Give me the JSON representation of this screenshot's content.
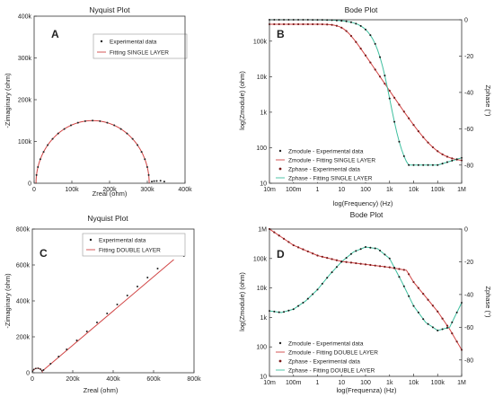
{
  "chart_data": [
    {
      "id": "A",
      "type": "scatter",
      "title": "Nyquist Plot",
      "panel_label": "A",
      "xlabel": "Zreal (ohm)",
      "ylabel": "-Zimaginary (ohm)",
      "xlim": [
        0,
        400000
      ],
      "ylim": [
        0,
        400000
      ],
      "xticks": [
        0,
        100000,
        200000,
        300000,
        400000
      ],
      "xtick_labels": [
        "0",
        "100k",
        "200k",
        "300k",
        "400k"
      ],
      "yticks": [
        0,
        100000,
        200000,
        300000,
        400000
      ],
      "ytick_labels": [
        "0",
        "100k",
        "200k",
        "300k",
        "400k"
      ],
      "legend": [
        "Experimental data",
        "Fitting SINGLE LAYER"
      ],
      "legend_position": "top-right",
      "semicircle": {
        "r_series": 5000,
        "r_total": 300000
      },
      "extra_points": [
        [
          312000,
          4000
        ],
        [
          318000,
          5000
        ],
        [
          325000,
          5500
        ],
        [
          335000,
          6000
        ],
        [
          345000,
          4000
        ]
      ]
    },
    {
      "id": "B",
      "type": "line",
      "title": "Bode Plot",
      "panel_label": "B",
      "xlabel": "log(Frequency) (Hz)",
      "ylabel": "log(Zmodule) (ohm)",
      "y2label": "Zphase (°)",
      "log_x": true,
      "log_y": true,
      "xlim": [
        10,
        1000000
      ],
      "ylim": [
        10,
        400000
      ],
      "y2lim": [
        -90,
        0
      ],
      "xtick_labels": [
        "10m",
        "100m",
        "1",
        "10",
        "100",
        "1k",
        "10k",
        "100k",
        "1M"
      ],
      "ytick_labels": [
        "10",
        "100",
        "1k",
        "10k",
        "100k"
      ],
      "y2tick_labels": [
        "0",
        "-20",
        "-40",
        "-60",
        "-80"
      ],
      "legend": [
        "Zmodule - Experimental data",
        "Zmodule - Fitting SINGLE LAYER",
        "Zphase - Experimental data",
        "Zphase - Fitting SINGLE LAYER"
      ],
      "legend_position": "bottom-left",
      "model": {
        "R1": 300000,
        "C1": 1e-10,
        "phase_floor": -80
      }
    },
    {
      "id": "C",
      "type": "line",
      "title": "Nyquist Plot",
      "panel_label": "C",
      "xlabel": "Zreal (ohm)",
      "ylabel": "-Zimaginary (ohm)",
      "xlim": [
        0,
        800000
      ],
      "ylim": [
        0,
        800000
      ],
      "xticks": [
        0,
        200000,
        400000,
        600000,
        800000
      ],
      "xtick_labels": [
        "0",
        "200k",
        "400k",
        "600k",
        "800k"
      ],
      "yticks": [
        0,
        200000,
        400000,
        600000,
        800000
      ],
      "ytick_labels": [
        "0",
        "200k",
        "400k",
        "600k",
        "800k"
      ],
      "legend": [
        "Experimental data",
        "Fitting DOUBLE LAYER"
      ],
      "legend_position": "top-right",
      "small_arc": {
        "start": 0,
        "end": 50000
      },
      "line": {
        "x": [
          50000,
          700000
        ],
        "y": [
          10000,
          630000
        ]
      },
      "experimental_points": [
        [
          55000,
          15000
        ],
        [
          90000,
          50000
        ],
        [
          130000,
          90000
        ],
        [
          170000,
          130000
        ],
        [
          220000,
          180000
        ],
        [
          270000,
          230000
        ],
        [
          320000,
          280000
        ],
        [
          370000,
          330000
        ],
        [
          420000,
          380000
        ],
        [
          470000,
          430000
        ],
        [
          520000,
          480000
        ],
        [
          570000,
          530000
        ],
        [
          620000,
          580000
        ],
        [
          750000,
          650000
        ]
      ]
    },
    {
      "id": "D",
      "type": "line",
      "title": "Bode Plot",
      "panel_label": "D",
      "xlabel": "log(Frequenza) (Hz)",
      "ylabel": "log(Zmodule) (ohm)",
      "y2label": "Zphase (°)",
      "log_x": true,
      "log_y": true,
      "xlim": [
        10,
        1000000
      ],
      "ylim": [
        10,
        1000000
      ],
      "y2lim": [
        -90,
        0
      ],
      "xtick_labels": [
        "10m",
        "100m",
        "1",
        "10",
        "100",
        "1k",
        "10k",
        "100k",
        "1M"
      ],
      "ytick_labels": [
        "10",
        "100",
        "1k",
        "10k",
        "100k",
        "1M"
      ],
      "y2tick_labels": [
        "0",
        "-20",
        "-40",
        "-60",
        "-80"
      ],
      "legend": [
        "Zmodule - Experimental data",
        "Zmodule - Fitting DOUBLE LAYER",
        "Zphase - Experimental data",
        "Zphase - Fitting DOUBLE LAYER"
      ],
      "legend_position": "bottom-left",
      "zmod": {
        "logf": [
          -2,
          -1,
          0,
          1,
          2,
          3,
          3.7,
          4,
          5,
          5.5,
          6
        ],
        "logz": [
          6.0,
          5.45,
          5.1,
          4.9,
          4.8,
          4.7,
          4.6,
          4.2,
          3.2,
          2.6,
          1.9
        ]
      },
      "zphase": {
        "logf": [
          -2,
          -1.5,
          -1,
          -0.5,
          0,
          0.5,
          1,
          1.5,
          2,
          2.5,
          3,
          3.5,
          4,
          4.5,
          5,
          5.5,
          6
        ],
        "deg": [
          -50,
          -51,
          -49,
          -44,
          -37,
          -28,
          -20,
          -14,
          -11,
          -12,
          -18,
          -32,
          -47,
          -57,
          -62,
          -60,
          -45
        ]
      }
    }
  ]
}
